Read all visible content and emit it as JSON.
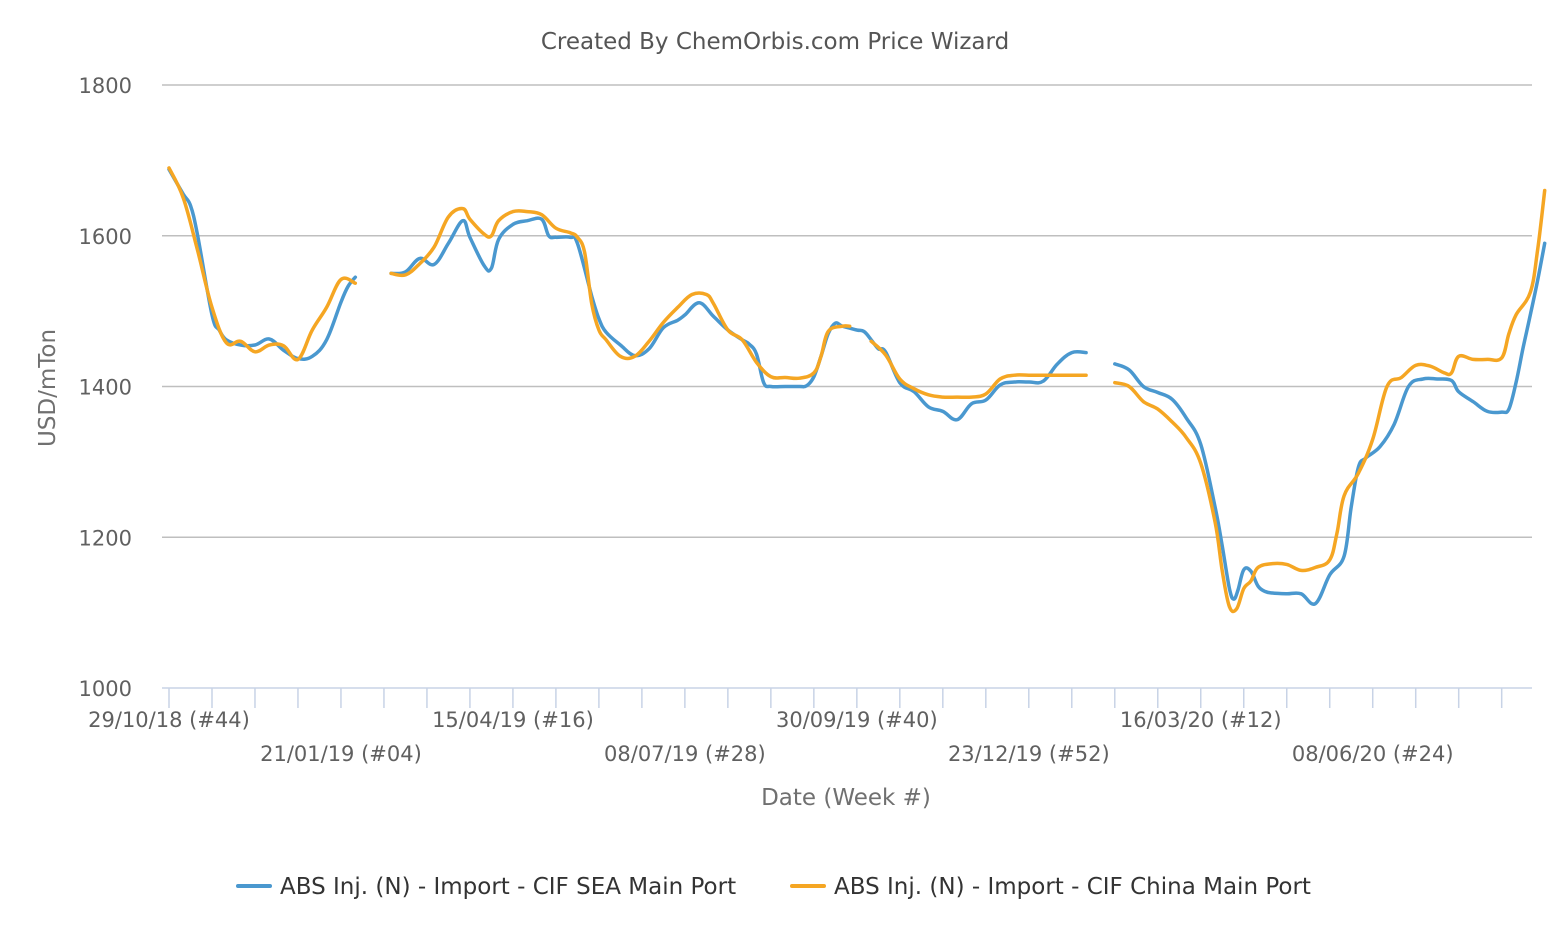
{
  "chart_data": {
    "type": "line",
    "title": "Created By ChemOrbis.com Price Wizard",
    "xlabel": "Date (Week #)",
    "ylabel": "USD/mTon",
    "ylim": [
      1000,
      1800
    ],
    "y_ticks": [
      1000,
      1200,
      1400,
      1600,
      1800
    ],
    "grid": true,
    "legend_position": "bottom",
    "x_tick_labels": [
      {
        "week": 0,
        "label": "29/10/18 (#44)"
      },
      {
        "week": 12,
        "label": "21/01/19 (#04)"
      },
      {
        "week": 24,
        "label": "15/04/19 (#16)"
      },
      {
        "week": 36,
        "label": "08/07/19 (#28)"
      },
      {
        "week": 48,
        "label": "30/09/19 (#40)"
      },
      {
        "week": 60,
        "label": "23/12/19 (#52)"
      },
      {
        "week": 72,
        "label": "16/03/20 (#12)"
      },
      {
        "week": 84,
        "label": "08/06/20 (#24)"
      }
    ],
    "x_range_weeks": [
      0,
      94.5
    ],
    "series": [
      {
        "name": "ABS Inj. (N) - Import - CIF SEA Main Port",
        "color": "#4a98cf",
        "segments": [
          [
            [
              0,
              1688
            ],
            [
              1,
              1655
            ],
            [
              1.5,
              1640
            ],
            [
              2,
              1600
            ],
            [
              3,
              1495
            ],
            [
              3.5,
              1475
            ],
            [
              4,
              1462
            ],
            [
              5,
              1455
            ],
            [
              6,
              1455
            ],
            [
              7,
              1463
            ],
            [
              8,
              1448
            ],
            [
              9,
              1437
            ],
            [
              10,
              1440
            ],
            [
              11,
              1462
            ],
            [
              12,
              1512
            ],
            [
              12.5,
              1533
            ],
            [
              13,
              1545
            ]
          ],
          [
            [
              15.5,
              1550
            ],
            [
              16.5,
              1552
            ],
            [
              17.5,
              1570
            ],
            [
              18.5,
              1562
            ],
            [
              19.5,
              1590
            ],
            [
              20.5,
              1620
            ],
            [
              21,
              1598
            ],
            [
              22,
              1560
            ],
            [
              22.5,
              1557
            ],
            [
              23,
              1595
            ],
            [
              24,
              1615
            ],
            [
              25,
              1620
            ],
            [
              26,
              1622
            ],
            [
              26.5,
              1600
            ],
            [
              27,
              1598
            ],
            [
              28,
              1598
            ],
            [
              28.5,
              1590
            ],
            [
              29.5,
              1520
            ],
            [
              30,
              1490
            ],
            [
              30.5,
              1472
            ],
            [
              31.5,
              1455
            ],
            [
              32.5,
              1441
            ],
            [
              33.5,
              1450
            ],
            [
              34.5,
              1478
            ],
            [
              35.5,
              1488
            ],
            [
              36,
              1495
            ],
            [
              37,
              1511
            ],
            [
              38,
              1493
            ],
            [
              39,
              1475
            ],
            [
              40,
              1462
            ],
            [
              40.5,
              1456
            ],
            [
              41,
              1443
            ],
            [
              41.5,
              1405
            ],
            [
              42,
              1400
            ],
            [
              43,
              1400
            ],
            [
              44,
              1400
            ],
            [
              44.5,
              1401
            ],
            [
              45,
              1413
            ],
            [
              45.5,
              1440
            ],
            [
              46,
              1470
            ],
            [
              46.5,
              1484
            ],
            [
              47,
              1480
            ],
            [
              48,
              1475
            ],
            [
              48.5,
              1473
            ],
            [
              49,
              1462
            ],
            [
              49.5,
              1450
            ],
            [
              50,
              1446
            ],
            [
              51,
              1405
            ],
            [
              52,
              1393
            ],
            [
              53,
              1373
            ],
            [
              54,
              1367
            ],
            [
              55,
              1356
            ],
            [
              56,
              1377
            ],
            [
              57,
              1382
            ],
            [
              58,
              1402
            ],
            [
              59,
              1406
            ],
            [
              60,
              1406
            ],
            [
              61,
              1407
            ],
            [
              62,
              1430
            ],
            [
              63,
              1445
            ],
            [
              64,
              1445
            ]
          ],
          [
            [
              66,
              1430
            ],
            [
              67,
              1422
            ],
            [
              68,
              1400
            ],
            [
              69,
              1392
            ],
            [
              70,
              1383
            ],
            [
              71,
              1358
            ],
            [
              72,
              1323
            ],
            [
              73,
              1240
            ],
            [
              73.5,
              1188
            ],
            [
              74,
              1132
            ],
            [
              74.3,
              1118
            ],
            [
              74.6,
              1130
            ],
            [
              75,
              1157
            ],
            [
              75.5,
              1155
            ],
            [
              76,
              1135
            ],
            [
              76.5,
              1128
            ],
            [
              77,
              1126
            ],
            [
              78,
              1125
            ],
            [
              79,
              1125
            ],
            [
              80,
              1112
            ],
            [
              81,
              1150
            ],
            [
              82,
              1175
            ],
            [
              82.5,
              1240
            ],
            [
              83,
              1293
            ],
            [
              83.5,
              1305
            ],
            [
              84.5,
              1320
            ],
            [
              85.5,
              1350
            ],
            [
              86.5,
              1400
            ],
            [
              87.5,
              1410
            ],
            [
              88.5,
              1410
            ],
            [
              89.5,
              1408
            ],
            [
              90,
              1393
            ],
            [
              91,
              1380
            ],
            [
              92,
              1367
            ],
            [
              93,
              1366
            ],
            [
              93.5,
              1370
            ],
            [
              94,
              1405
            ],
            [
              94.5,
              1452
            ],
            [
              95,
              1495
            ],
            [
              95.5,
              1540
            ],
            [
              96,
              1590
            ]
          ]
        ]
      },
      {
        "name": "ABS Inj. (N) - Import - CIF China Main Port",
        "color": "#f5a623",
        "segments": [
          [
            [
              0,
              1690
            ],
            [
              1,
              1650
            ],
            [
              2,
              1580
            ],
            [
              3,
              1505
            ],
            [
              4,
              1458
            ],
            [
              5,
              1460
            ],
            [
              6,
              1446
            ],
            [
              7,
              1455
            ],
            [
              8,
              1454
            ],
            [
              9,
              1436
            ],
            [
              10,
              1475
            ],
            [
              11,
              1505
            ],
            [
              12,
              1542
            ],
            [
              13,
              1537
            ]
          ],
          [
            [
              15.5,
              1550
            ],
            [
              16.5,
              1548
            ],
            [
              17.5,
              1563
            ],
            [
              18.5,
              1585
            ],
            [
              19.5,
              1625
            ],
            [
              20.5,
              1636
            ],
            [
              21,
              1622
            ],
            [
              22,
              1602
            ],
            [
              22.5,
              1600
            ],
            [
              23,
              1620
            ],
            [
              24,
              1632
            ],
            [
              25,
              1632
            ],
            [
              26,
              1628
            ],
            [
              27,
              1610
            ],
            [
              28,
              1604
            ],
            [
              28.5,
              1598
            ],
            [
              29,
              1578
            ],
            [
              29.5,
              1510
            ],
            [
              30,
              1475
            ],
            [
              30.5,
              1462
            ],
            [
              31.5,
              1440
            ],
            [
              32.5,
              1440
            ],
            [
              33.5,
              1460
            ],
            [
              34.5,
              1485
            ],
            [
              35.5,
              1505
            ],
            [
              36.5,
              1522
            ],
            [
              37.5,
              1522
            ],
            [
              38,
              1510
            ],
            [
              39,
              1475
            ],
            [
              40,
              1462
            ],
            [
              41,
              1432
            ],
            [
              42,
              1413
            ],
            [
              43,
              1412
            ],
            [
              44,
              1411
            ],
            [
              45,
              1418
            ],
            [
              45.5,
              1440
            ],
            [
              46,
              1473
            ],
            [
              47,
              1480
            ],
            [
              47.5,
              1480
            ]
          ],
          [
            [
              49,
              1460
            ],
            [
              50,
              1442
            ],
            [
              51,
              1410
            ],
            [
              52,
              1397
            ],
            [
              53,
              1389
            ],
            [
              54,
              1386
            ],
            [
              55,
              1386
            ],
            [
              56,
              1386
            ],
            [
              57,
              1390
            ],
            [
              58,
              1410
            ],
            [
              59,
              1415
            ],
            [
              60,
              1415
            ],
            [
              61,
              1415
            ],
            [
              62,
              1415
            ],
            [
              63,
              1415
            ],
            [
              64,
              1415
            ]
          ],
          [
            [
              66,
              1405
            ],
            [
              67,
              1400
            ],
            [
              68,
              1380
            ],
            [
              69,
              1370
            ],
            [
              70,
              1353
            ],
            [
              71,
              1332
            ],
            [
              72,
              1298
            ],
            [
              73,
              1220
            ],
            [
              73.5,
              1155
            ],
            [
              74,
              1108
            ],
            [
              74.5,
              1105
            ],
            [
              75,
              1132
            ],
            [
              75.5,
              1142
            ],
            [
              76,
              1160
            ],
            [
              77,
              1165
            ],
            [
              78,
              1164
            ],
            [
              79,
              1156
            ],
            [
              80,
              1160
            ],
            [
              81,
              1170
            ],
            [
              81.5,
              1205
            ],
            [
              82,
              1255
            ],
            [
              83,
              1285
            ],
            [
              84,
              1330
            ],
            [
              85,
              1400
            ],
            [
              86,
              1412
            ],
            [
              87,
              1428
            ],
            [
              88,
              1427
            ],
            [
              89,
              1418
            ],
            [
              89.5,
              1418
            ],
            [
              90,
              1440
            ],
            [
              91,
              1436
            ],
            [
              92,
              1436
            ],
            [
              93,
              1438
            ],
            [
              93.5,
              1470
            ],
            [
              94,
              1495
            ],
            [
              95,
              1525
            ],
            [
              95.5,
              1580
            ],
            [
              96,
              1660
            ]
          ]
        ]
      }
    ]
  }
}
